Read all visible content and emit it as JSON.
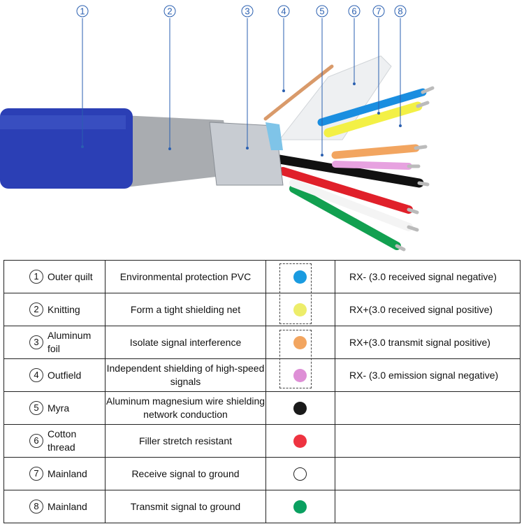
{
  "callouts": [
    "1",
    "2",
    "3",
    "4",
    "5",
    "6",
    "7",
    "8"
  ],
  "rows": [
    {
      "num": "1",
      "name": "Outer quilt",
      "function": "Environmental protection PVC",
      "color": "#1a9be0",
      "signal": "RX- (3.0 received signal negative)"
    },
    {
      "num": "2",
      "name": "Knitting",
      "function": "Form a tight shielding net",
      "color": "#eded6a",
      "signal": "RX+(3.0 received signal positive)"
    },
    {
      "num": "3",
      "name": "Aluminum foil",
      "function": "Isolate signal interference",
      "color": "#f2a560",
      "signal": "RX+(3.0 transmit signal positive)"
    },
    {
      "num": "4",
      "name": "Outfield",
      "function": "Independent shielding of high-speed signals",
      "color": "#de8fd6",
      "signal": "RX- (3.0 emission signal negative)"
    },
    {
      "num": "5",
      "name": "Myra",
      "function": "Aluminum magnesium wire shielding network conduction",
      "color": "#1a1a1a",
      "signal": ""
    },
    {
      "num": "6",
      "name": "Cotton thread",
      "function": "Filler stretch resistant",
      "color": "#ee3340",
      "signal": ""
    },
    {
      "num": "7",
      "name": "Mainland",
      "function": "Receive signal to ground",
      "color": "#ffffff",
      "signal": ""
    },
    {
      "num": "8",
      "name": "Mainland",
      "function": "Transmit signal to ground",
      "color": "#0aa060",
      "signal": ""
    }
  ]
}
